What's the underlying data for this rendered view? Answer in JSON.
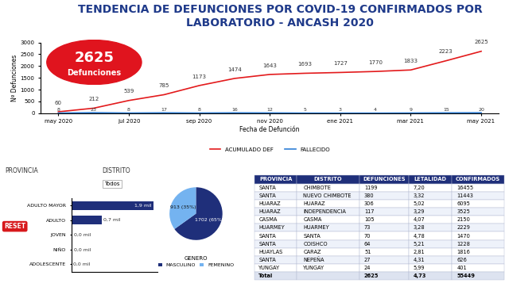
{
  "title": "TENDENCIA DE DEFUNCIONES POR COVID-19 CONFIRMADOS POR LABORATORIO - ANCASH 2020",
  "badge": {
    "value": 2625,
    "label": "Defunciones"
  },
  "filters": [
    {
      "label": "PROVINCIA"
    },
    {
      "label": "DISTRITO",
      "value": "Todos"
    }
  ],
  "button": "RESET",
  "chart_data": [
    {
      "type": "line",
      "x_label": "Fecha de Defunción",
      "y_label": "Nº Defunciones",
      "categories": [
        "may 2020",
        null,
        "jul 2020",
        null,
        "sep 2020",
        null,
        "nov 2020",
        null,
        "ene 2021",
        null,
        "mar 2021",
        null,
        "may 2021"
      ],
      "series": [
        {
          "name": "ACUMULADO DEF",
          "color": "#e31a1c",
          "values": [
            60,
            212,
            539,
            785,
            1173,
            1474,
            1643,
            1693,
            1727,
            1770,
            1833,
            2223,
            2625
          ]
        },
        {
          "name": "FALLECIDO",
          "color": "#2f7fd6",
          "values": [
            8,
            23,
            8,
            17,
            8,
            16,
            12,
            5,
            3,
            4,
            9,
            15,
            20
          ]
        }
      ],
      "ylim": [
        0,
        3000
      ],
      "yticks": [
        0,
        500,
        1000,
        1500,
        2000,
        2500,
        3000
      ],
      "data_labels": true,
      "legend": "lower center",
      "grid": false
    },
    {
      "type": "bar",
      "orientation": "horizontal",
      "categories": [
        "ADULTO MAYOR",
        "ADULTO",
        "JOVEN",
        "NIÑO",
        "ADOLESCENTE"
      ],
      "values": [
        1900,
        700,
        20,
        5,
        2
      ],
      "value_labels": [
        "1,9 mil",
        "0,7 mil",
        "0,0 mil",
        "0,0 mil",
        "0,0 mil"
      ],
      "color": "#1f2f7a",
      "xlim": [
        0,
        2000
      ],
      "data_labels": true,
      "tick_labels": "y"
    },
    {
      "type": "pie",
      "legend_title": "GENERO",
      "categories": [
        "MASCULINO",
        "FEMENINO"
      ],
      "values": [
        1702,
        913
      ],
      "value_labels": [
        "1702 (65%)",
        "913 (35%)"
      ],
      "colors": [
        "#1f2f7a",
        "#74b3f0"
      ],
      "legend": "lower center",
      "data_labels": true
    }
  ],
  "table": {
    "columns": [
      "PROVINCIA",
      "DISTRITO",
      "DEFUNCIONES",
      "LETALIDAD",
      "CONFIRMADOS"
    ],
    "rows": [
      [
        "SANTA",
        "CHIMBOTE",
        "1199",
        "7,20",
        "16455"
      ],
      [
        "SANTA",
        "NUEVO CHIMBOTE",
        "380",
        "3,32",
        "11443"
      ],
      [
        "HUARAZ",
        "HUARAZ",
        "306",
        "5,02",
        "6095"
      ],
      [
        "HUARAZ",
        "INDEPENDENCIA",
        "117",
        "3,29",
        "3525"
      ],
      [
        "CASMA",
        "CASMA",
        "105",
        "4,07",
        "2150"
      ],
      [
        "HUARMEY",
        "HUARMEY",
        "73",
        "3,28",
        "2229"
      ],
      [
        "SANTA",
        "SANTA",
        "70",
        "4,78",
        "1470"
      ],
      [
        "SANTA",
        "COISHCO",
        "64",
        "5,21",
        "1228"
      ],
      [
        "HUAYLAS",
        "CARAZ",
        "51",
        "2,81",
        "1816"
      ],
      [
        "SANTA",
        "NEPEÑA",
        "27",
        "4,31",
        "626"
      ],
      [
        "YUNGAY",
        "YUNGAY",
        "24",
        "5,99",
        "401"
      ],
      [
        "Total",
        null,
        "2625",
        "4,73",
        "55449"
      ]
    ]
  }
}
